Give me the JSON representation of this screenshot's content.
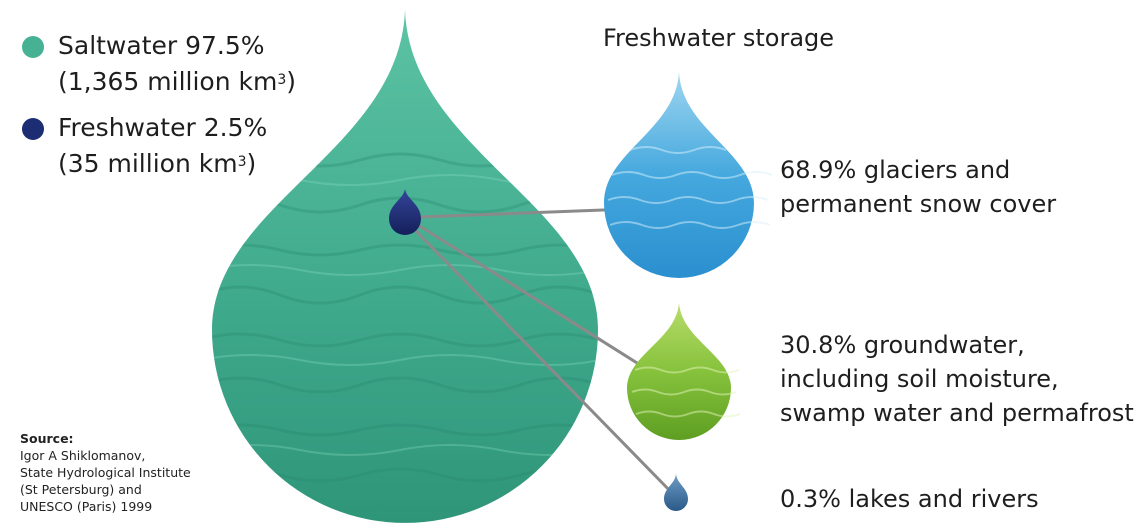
{
  "legend": {
    "saltwater": {
      "line1": "Saltwater 97.5%",
      "line2_pre": "(1,365 million km",
      "sup": "3",
      "line2_post": ")",
      "color": "#47b194"
    },
    "freshwater": {
      "line1": "Freshwater 2.5%",
      "line2_pre": "(35 million km",
      "sup": "3",
      "line2_post": ")",
      "color": "#1c2d74"
    }
  },
  "storage": {
    "title": "Freshwater storage",
    "glaciers": {
      "line1": "68.9% glaciers and",
      "line2": "permanent snow cover",
      "color": "#3fa3dc"
    },
    "groundwater": {
      "line1": "30.8% groundwater,",
      "line2": "including soil moisture,",
      "line3": "swamp water and permafrost",
      "color": "#84c23b"
    },
    "lakes": {
      "line1": "0.3% lakes and rivers",
      "color": "#3f6f9e"
    }
  },
  "source": {
    "heading": "Source:",
    "line1": "Igor A Shiklomanov,",
    "line2": "State Hydrological Institute",
    "line3": "(St Petersburg) and",
    "line4": "UNESCO (Paris) 1999"
  }
}
